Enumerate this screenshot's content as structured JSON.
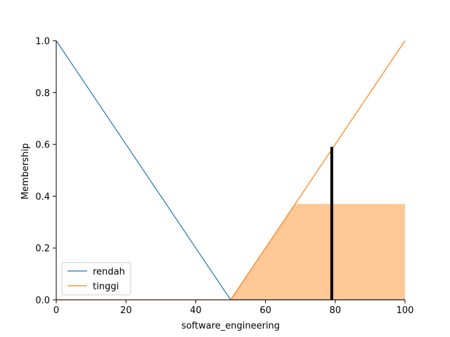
{
  "chart_data": {
    "type": "line",
    "title": "",
    "xlabel": "software_engineering",
    "ylabel": "Membership",
    "xlim": [
      0,
      100
    ],
    "ylim": [
      0,
      1.0
    ],
    "x_ticks": [
      0,
      20,
      40,
      60,
      80,
      100
    ],
    "y_ticks": [
      0.0,
      0.2,
      0.4,
      0.6,
      0.8,
      1.0
    ],
    "x_tick_labels": [
      "0",
      "20",
      "40",
      "60",
      "80",
      "100"
    ],
    "y_tick_labels": [
      "0.0",
      "0.2",
      "0.4",
      "0.6",
      "0.8",
      "1.0"
    ],
    "grid": false,
    "legend_position": "lower-left",
    "series": [
      {
        "name": "rendah",
        "color": "#1f77b4",
        "x": [
          0,
          50,
          100
        ],
        "y": [
          1.0,
          0.0,
          0.0
        ]
      },
      {
        "name": "tinggi",
        "color": "#ff7f0e",
        "x": [
          0,
          50,
          100
        ],
        "y": [
          0.0,
          0.0,
          1.0
        ]
      }
    ],
    "activation_area": {
      "color": "#ffc896",
      "x": [
        50,
        68.5,
        100,
        100,
        50
      ],
      "y": [
        0,
        0.37,
        0.37,
        0,
        0
      ]
    },
    "crisp_output": {
      "x": 79,
      "y": 0.59,
      "color": "#000000"
    }
  }
}
